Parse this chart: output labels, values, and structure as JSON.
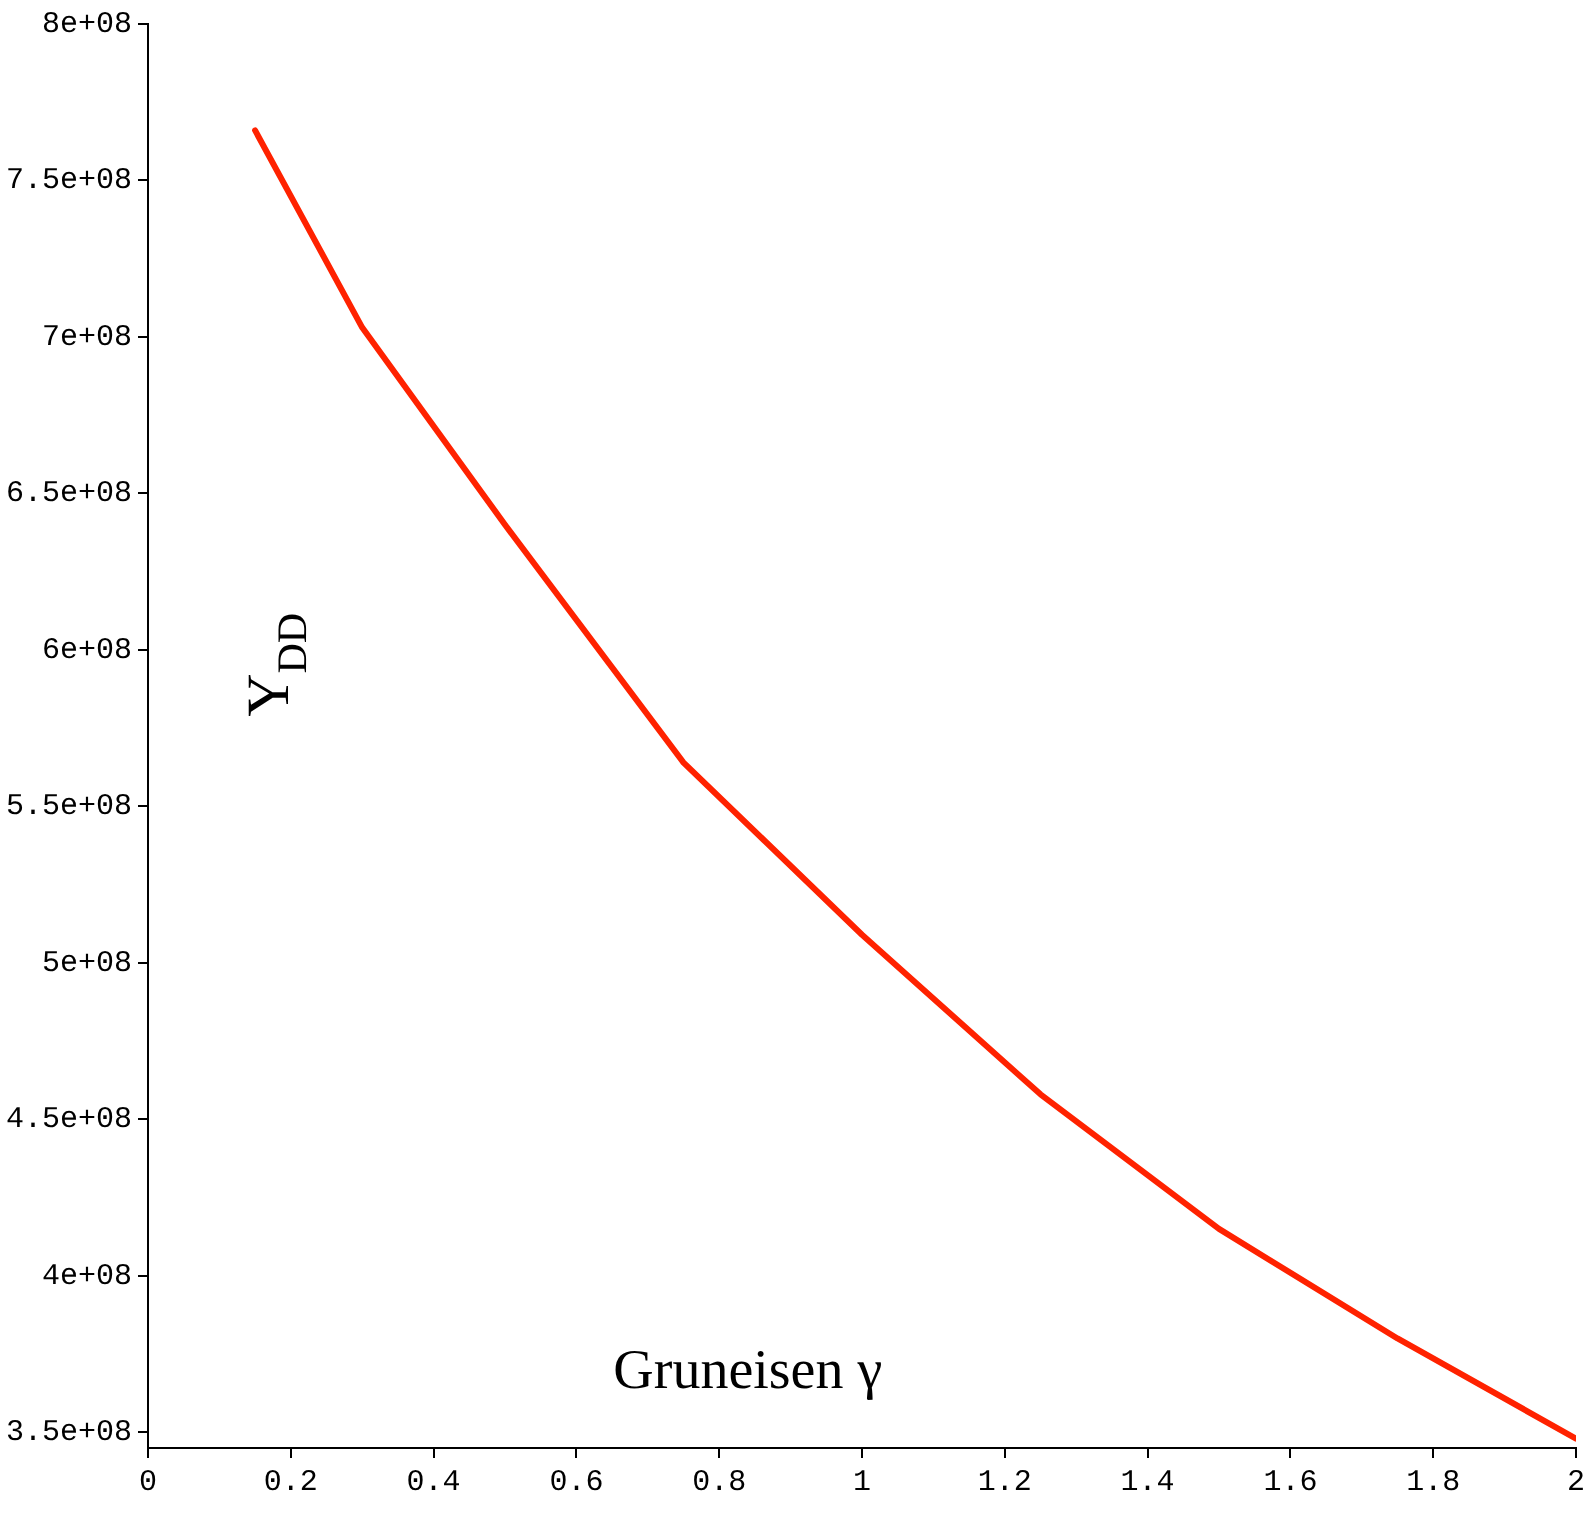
{
  "chart_data": {
    "type": "line",
    "xlabel": "Gruneisen γ",
    "ylabel": "Y$_{DD}$",
    "series": [
      {
        "color": "#ff2200",
        "x": [
          0.15,
          0.3,
          0.5,
          0.75,
          1.0,
          1.25,
          1.5,
          1.75,
          2.0
        ],
        "values": [
          766000000,
          703000000,
          640000000,
          564000000,
          509000000,
          458000000,
          415000000,
          380000000,
          348000000
        ]
      }
    ],
    "xlim": [
      0,
      2
    ],
    "xticks": [
      0,
      0.2,
      0.4,
      0.6,
      0.8,
      1,
      1.2,
      1.4,
      1.6,
      1.8,
      2
    ],
    "ylim": [
      345000000,
      800000000
    ],
    "yticks": [
      {
        "value": 350000000,
        "label": "3.5e+08"
      },
      {
        "value": 400000000,
        "label": "4e+08"
      },
      {
        "value": 450000000,
        "label": "4.5e+08"
      },
      {
        "value": 500000000,
        "label": "5e+08"
      },
      {
        "value": 550000000,
        "label": "5.5e+08"
      },
      {
        "value": 600000000,
        "label": "6e+08"
      },
      {
        "value": 650000000,
        "label": "6.5e+08"
      },
      {
        "value": 700000000,
        "label": "7e+08"
      },
      {
        "value": 750000000,
        "label": "7.5e+08"
      },
      {
        "value": 800000000,
        "label": "8e+08"
      }
    ],
    "grid": false,
    "legend": false,
    "marker": "none",
    "line_style": "solid"
  }
}
